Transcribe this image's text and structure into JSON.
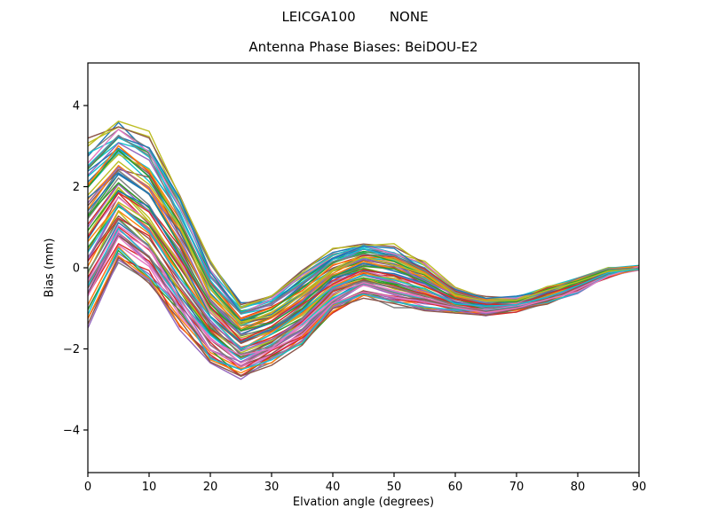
{
  "figure": {
    "suptitle": "LEICGA100        NONE",
    "background_color": "#ffffff"
  },
  "axes": {
    "title": "Antenna Phase Biases: BeiDOU-E2",
    "xlabel": "Elvation angle (degrees)",
    "ylabel": "Bias (mm)",
    "xlim": [
      0,
      90
    ],
    "ylim": [
      -5.05,
      5.05
    ],
    "xticks": [
      0,
      10,
      20,
      30,
      40,
      50,
      60,
      70,
      80,
      90
    ],
    "yticks": [
      -4,
      -2,
      0,
      2,
      4
    ],
    "xticklabels": [
      "0",
      "10",
      "20",
      "30",
      "40",
      "50",
      "60",
      "70",
      "80",
      "90"
    ],
    "yticklabels": [
      "−4",
      "−2",
      "0",
      "2",
      "4"
    ],
    "frame_color": "#000000",
    "grid": false,
    "legend": "none"
  },
  "chart_data": {
    "type": "line",
    "title": "Antenna Phase Biases: BeiDOU-E2",
    "xlabel": "Elvation angle (degrees)",
    "ylabel": "Bias (mm)",
    "xlim": [
      0,
      90
    ],
    "ylim": [
      -5.05,
      5.05
    ],
    "description": "Ensemble of ~80 overlapping antenna phase-bias curves vs elevation angle (one curve per antenna/sample), piecewise-linear with vertices every 5 degrees, colors cycling through the matplotlib tab10 palette; all curves converge to 0 mm at 90 degrees.",
    "x": [
      0,
      5,
      10,
      15,
      20,
      25,
      30,
      35,
      40,
      45,
      50,
      55,
      60,
      65,
      70,
      75,
      80,
      85,
      90
    ],
    "ensemble_mean": [
      0.85,
      1.9,
      1.35,
      0.2,
      -1.1,
      -1.78,
      -1.52,
      -1.0,
      -0.35,
      -0.05,
      -0.2,
      -0.45,
      -0.8,
      -0.95,
      -0.88,
      -0.68,
      -0.42,
      -0.12,
      0.0
    ],
    "ensemble_halfspread": [
      2.35,
      1.85,
      1.95,
      1.8,
      1.3,
      0.98,
      0.9,
      0.95,
      0.8,
      0.7,
      0.75,
      0.6,
      0.3,
      0.21,
      0.17,
      0.2,
      0.17,
      0.1,
      0.02
    ],
    "envelope_top": [
      3.2,
      3.75,
      3.3,
      2.0,
      0.2,
      -0.8,
      -0.62,
      -0.05,
      0.45,
      0.65,
      0.55,
      0.15,
      -0.5,
      -0.74,
      -0.71,
      -0.48,
      -0.25,
      -0.02,
      0.02
    ],
    "envelope_bottom": [
      -1.5,
      0.05,
      -0.6,
      -1.6,
      -2.4,
      -2.76,
      -2.42,
      -1.95,
      -1.15,
      -0.75,
      -0.95,
      -1.05,
      -1.1,
      -1.16,
      -1.05,
      -0.88,
      -0.59,
      -0.22,
      -0.02
    ],
    "n_lines": 80,
    "line_width": 1.4,
    "seed": 7,
    "palette": [
      "#1f77b4",
      "#ff7f0e",
      "#2ca02c",
      "#d62728",
      "#9467bd",
      "#8c564b",
      "#e377c2",
      "#7f7f7f",
      "#bcbd22",
      "#17becf"
    ]
  }
}
